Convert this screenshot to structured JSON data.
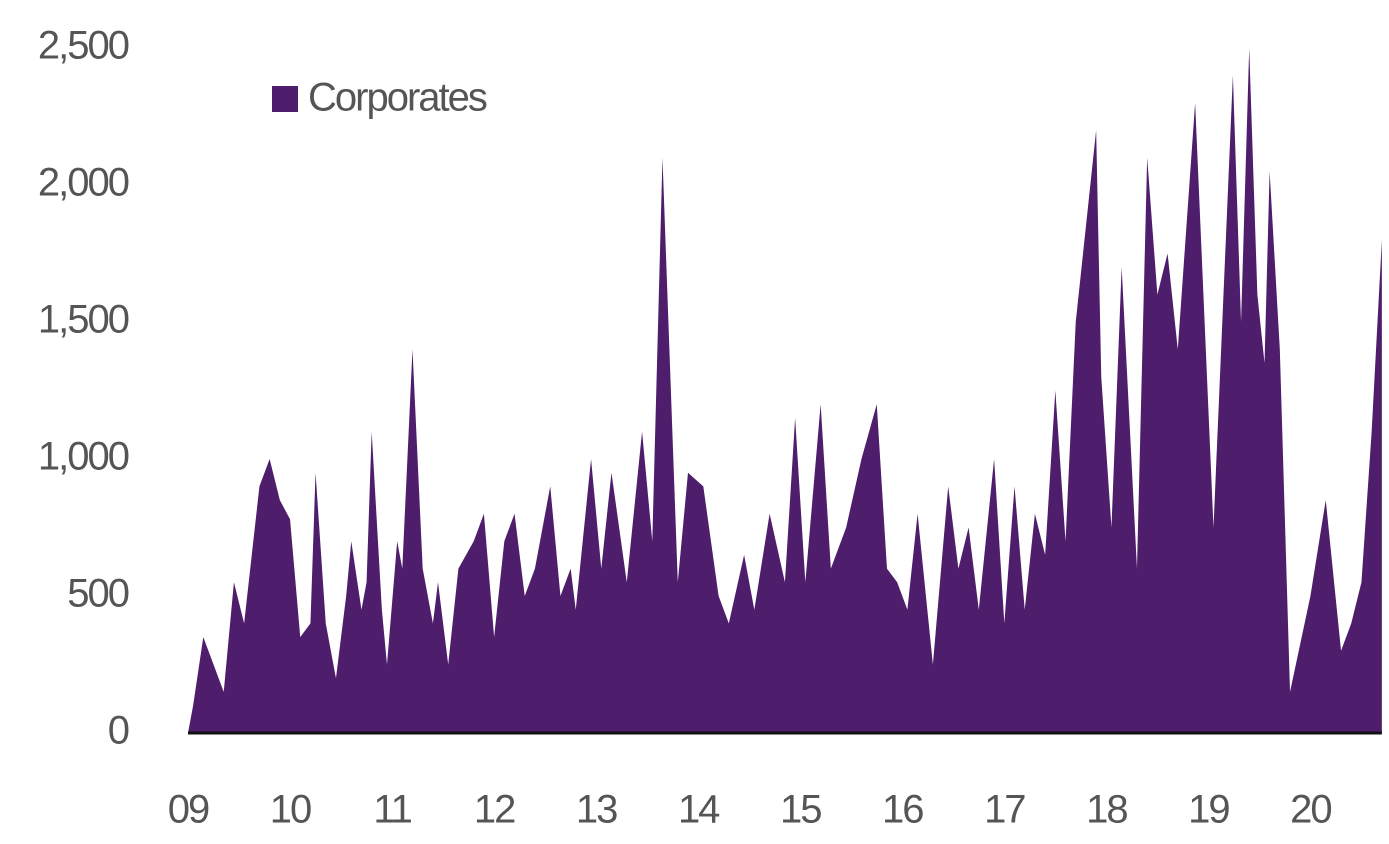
{
  "chart_data": {
    "type": "area",
    "x": [
      9.0,
      9.05,
      9.15,
      9.25,
      9.35,
      9.45,
      9.55,
      9.7,
      9.8,
      9.9,
      10.0,
      10.1,
      10.2,
      10.25,
      10.35,
      10.45,
      10.55,
      10.6,
      10.7,
      10.75,
      10.8,
      10.9,
      10.95,
      11.05,
      11.1,
      11.2,
      11.3,
      11.4,
      11.45,
      11.55,
      11.65,
      11.8,
      11.9,
      12.0,
      12.1,
      12.2,
      12.3,
      12.4,
      12.55,
      12.65,
      12.75,
      12.8,
      12.95,
      13.05,
      13.15,
      13.3,
      13.45,
      13.55,
      13.65,
      13.8,
      13.9,
      14.05,
      14.2,
      14.3,
      14.45,
      14.55,
      14.7,
      14.85,
      14.95,
      15.05,
      15.2,
      15.3,
      15.45,
      15.6,
      15.75,
      15.85,
      15.95,
      16.05,
      16.15,
      16.3,
      16.45,
      16.55,
      16.65,
      16.75,
      16.9,
      17.0,
      17.1,
      17.2,
      17.3,
      17.4,
      17.5,
      17.6,
      17.7,
      17.9,
      17.95,
      18.05,
      18.15,
      18.3,
      18.4,
      18.5,
      18.6,
      18.7,
      18.87,
      19.05,
      19.24,
      19.32,
      19.4,
      19.48,
      19.55,
      19.6,
      19.7,
      19.8,
      20.0,
      20.15,
      20.3,
      20.4,
      20.5,
      20.6,
      20.7
    ],
    "series": [
      {
        "name": "Corporates",
        "color": "#4e1d6b",
        "values": [
          0,
          100,
          350,
          250,
          150,
          550,
          400,
          900,
          1000,
          850,
          780,
          350,
          400,
          950,
          400,
          200,
          500,
          700,
          450,
          550,
          1100,
          450,
          250,
          700,
          600,
          1400,
          600,
          400,
          550,
          250,
          600,
          700,
          800,
          350,
          700,
          800,
          500,
          600,
          900,
          500,
          600,
          450,
          1000,
          600,
          950,
          550,
          1100,
          700,
          2100,
          550,
          950,
          900,
          500,
          400,
          650,
          450,
          800,
          550,
          1150,
          550,
          1200,
          600,
          750,
          1000,
          1200,
          600,
          550,
          450,
          800,
          250,
          900,
          600,
          750,
          450,
          1000,
          400,
          900,
          450,
          800,
          650,
          1250,
          700,
          1500,
          2200,
          1300,
          750,
          1700,
          600,
          2100,
          1600,
          1750,
          1400,
          2300,
          750,
          2400,
          1500,
          2500,
          1600,
          1350,
          2050,
          1400,
          150,
          500,
          850,
          300,
          400,
          550,
          1100,
          1800
        ]
      }
    ],
    "xlim": [
      9,
      20.77
    ],
    "xticks": [
      {
        "value": 9,
        "label": "09"
      },
      10,
      11,
      12,
      13,
      14,
      15,
      16,
      17,
      18,
      19,
      20
    ],
    "ylim": [
      0,
      2500
    ],
    "yticks": [
      0,
      500,
      {
        "value": 1000,
        "label": "1,000"
      },
      {
        "value": 1500,
        "label": "1,500"
      },
      {
        "value": 2000,
        "label": "2,000"
      },
      {
        "value": 2500,
        "label": "2,500"
      }
    ],
    "legend": "upper left"
  }
}
